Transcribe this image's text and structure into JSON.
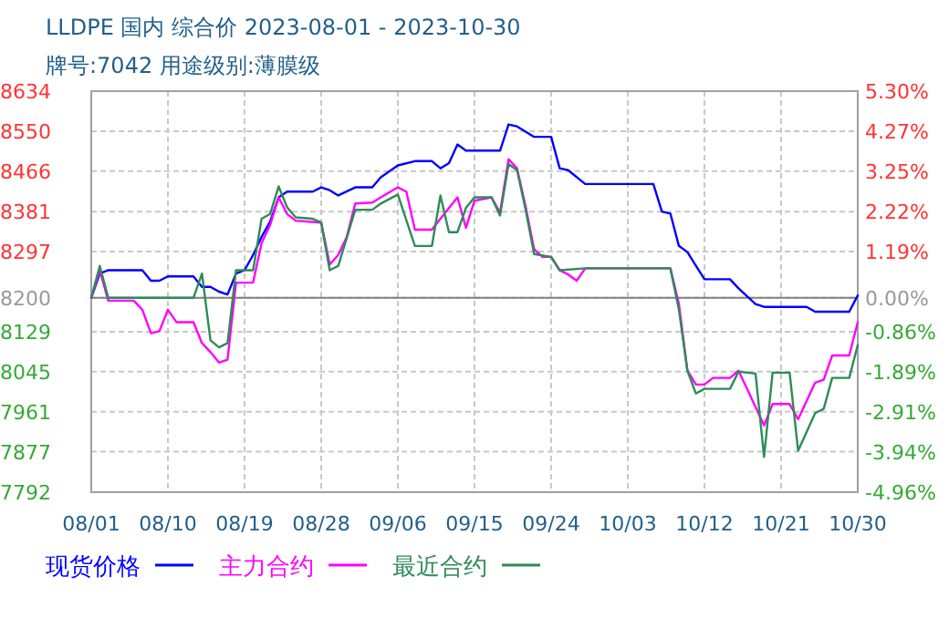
{
  "chart_data": {
    "type": "line",
    "title": "LLDPE 国内 综合价 2023-08-01 - 2023-10-30",
    "subtitle": "牌号:7042 用途级别:薄膜级",
    "xlim": [
      "2023-08-01",
      "2023-10-30"
    ],
    "xticks": [
      {
        "value": "2023-08-01",
        "label": "08/01"
      },
      {
        "value": "2023-08-10",
        "label": "08/10"
      },
      {
        "value": "2023-08-19",
        "label": "08/19"
      },
      {
        "value": "2023-08-28",
        "label": "08/28"
      },
      {
        "value": "2023-09-06",
        "label": "09/06"
      },
      {
        "value": "2023-09-15",
        "label": "09/15"
      },
      {
        "value": "2023-09-24",
        "label": "09/24"
      },
      {
        "value": "2023-10-03",
        "label": "10/03"
      },
      {
        "value": "2023-10-12",
        "label": "10/12"
      },
      {
        "value": "2023-10-21",
        "label": "10/21"
      },
      {
        "value": "2023-10-30",
        "label": "10/30"
      }
    ],
    "ylim": [
      7792,
      8634
    ],
    "yticks": [
      7792,
      7877,
      7961,
      8045,
      8129,
      8200,
      8297,
      8381,
      8466,
      8550,
      8634
    ],
    "y2lim": [
      -4.96,
      5.3
    ],
    "y2ticks": [
      {
        "value": -4.96,
        "label": "-4.96%"
      },
      {
        "value": -3.94,
        "label": "-3.94%"
      },
      {
        "value": -2.91,
        "label": "-2.91%"
      },
      {
        "value": -1.89,
        "label": "-1.89%"
      },
      {
        "value": -0.86,
        "label": "-0.86%"
      },
      {
        "value": 0,
        "label": "0.00%"
      },
      {
        "value": 1.19,
        "label": "1.19%"
      },
      {
        "value": 2.22,
        "label": "2.22%"
      },
      {
        "value": 3.25,
        "label": "3.25%"
      },
      {
        "value": 4.27,
        "label": "4.27%"
      },
      {
        "value": 5.3,
        "label": "5.30%"
      }
    ],
    "ref_lines": [
      {
        "axis": "y",
        "value": 8200,
        "color": "#808080"
      }
    ],
    "grid": true,
    "legend": "bottom",
    "marker": "none",
    "line_style": "solid",
    "series": [
      {
        "name": "现货价格",
        "color": "#0000ff",
        "x": [
          "2023-08-01",
          "2023-08-02",
          "2023-08-03",
          "2023-08-07",
          "2023-08-08",
          "2023-08-09",
          "2023-08-10",
          "2023-08-13",
          "2023-08-14",
          "2023-08-15",
          "2023-08-16",
          "2023-08-17",
          "2023-08-18",
          "2023-08-19",
          "2023-08-20",
          "2023-08-21",
          "2023-08-22",
          "2023-08-23",
          "2023-08-24",
          "2023-08-27",
          "2023-08-28",
          "2023-08-29",
          "2023-08-30",
          "2023-09-01",
          "2023-09-03",
          "2023-09-04",
          "2023-09-06",
          "2023-09-08",
          "2023-09-10",
          "2023-09-11",
          "2023-09-12",
          "2023-09-13",
          "2023-09-14",
          "2023-09-18",
          "2023-09-19",
          "2023-09-20",
          "2023-09-22",
          "2023-09-24",
          "2023-09-25",
          "2023-09-26",
          "2023-09-28",
          "2023-10-06",
          "2023-10-07",
          "2023-10-08",
          "2023-10-09",
          "2023-10-10",
          "2023-10-12",
          "2023-10-15",
          "2023-10-16",
          "2023-10-18",
          "2023-10-19",
          "2023-10-24",
          "2023-10-25",
          "2023-10-29",
          "2023-10-30"
        ],
        "values": [
          8200,
          8251,
          8258,
          8258,
          8236,
          8236,
          8245,
          8245,
          8223,
          8223,
          8213,
          8207,
          8251,
          8258,
          8290,
          8328,
          8360,
          8411,
          8423,
          8423,
          8432,
          8426,
          8415,
          8432,
          8432,
          8453,
          8478,
          8487,
          8487,
          8472,
          8483,
          8522,
          8509,
          8509,
          8564,
          8560,
          8538,
          8538,
          8472,
          8468,
          8439,
          8439,
          8381,
          8377,
          8309,
          8296,
          8239,
          8239,
          8220,
          8187,
          8181,
          8181,
          8171,
          8171,
          8205
        ]
      },
      {
        "name": "主力合约",
        "color": "#ff00ff",
        "x": [
          "2023-08-01",
          "2023-08-02",
          "2023-08-03",
          "2023-08-06",
          "2023-08-07",
          "2023-08-08",
          "2023-08-09",
          "2023-08-10",
          "2023-08-11",
          "2023-08-13",
          "2023-08-14",
          "2023-08-15",
          "2023-08-16",
          "2023-08-17",
          "2023-08-18",
          "2023-08-20",
          "2023-08-21",
          "2023-08-22",
          "2023-08-23",
          "2023-08-24",
          "2023-08-25",
          "2023-08-28",
          "2023-08-29",
          "2023-08-30",
          "2023-08-31",
          "2023-09-01",
          "2023-09-03",
          "2023-09-04",
          "2023-09-06",
          "2023-09-07",
          "2023-09-08",
          "2023-09-10",
          "2023-09-11",
          "2023-09-13",
          "2023-09-14",
          "2023-09-15",
          "2023-09-17",
          "2023-09-18",
          "2023-09-19",
          "2023-09-20",
          "2023-09-21",
          "2023-09-22",
          "2023-09-23",
          "2023-09-24",
          "2023-09-25",
          "2023-09-26",
          "2023-09-27",
          "2023-09-28",
          "2023-10-08",
          "2023-10-09",
          "2023-10-10",
          "2023-10-11",
          "2023-10-12",
          "2023-10-13",
          "2023-10-15",
          "2023-10-16",
          "2023-10-17",
          "2023-10-19",
          "2023-10-20",
          "2023-10-22",
          "2023-10-23",
          "2023-10-25",
          "2023-10-26",
          "2023-10-27",
          "2023-10-29",
          "2023-10-30"
        ],
        "values": [
          8200,
          8258,
          8194,
          8194,
          8175,
          8126,
          8130,
          8175,
          8149,
          8149,
          8105,
          8086,
          8064,
          8070,
          8232,
          8232,
          8315,
          8353,
          8411,
          8376,
          8362,
          8358,
          8270,
          8290,
          8328,
          8398,
          8400,
          8411,
          8432,
          8423,
          8343,
          8343,
          8366,
          8411,
          8347,
          8404,
          8411,
          8379,
          8491,
          8472,
          8392,
          8302,
          8286,
          8286,
          8258,
          8249,
          8236,
          8262,
          8262,
          8187,
          8047,
          8018,
          8018,
          8032,
          8032,
          8047,
          8009,
          7932,
          7977,
          7977,
          7945,
          8022,
          8028,
          8079,
          8079,
          8149
        ]
      },
      {
        "name": "最近合约",
        "color": "#2e8b57",
        "x": [
          "2023-08-01",
          "2023-08-02",
          "2023-08-03",
          "2023-08-13",
          "2023-08-14",
          "2023-08-15",
          "2023-08-16",
          "2023-08-17",
          "2023-08-18",
          "2023-08-20",
          "2023-08-21",
          "2023-08-22",
          "2023-08-23",
          "2023-08-24",
          "2023-08-25",
          "2023-08-27",
          "2023-08-28",
          "2023-08-29",
          "2023-08-30",
          "2023-09-01",
          "2023-09-03",
          "2023-09-04",
          "2023-09-06",
          "2023-09-08",
          "2023-09-10",
          "2023-09-11",
          "2023-09-12",
          "2023-09-13",
          "2023-09-14",
          "2023-09-15",
          "2023-09-17",
          "2023-09-18",
          "2023-09-19",
          "2023-09-20",
          "2023-09-21",
          "2023-09-22",
          "2023-09-24",
          "2023-09-25",
          "2023-09-28",
          "2023-10-08",
          "2023-10-09",
          "2023-10-10",
          "2023-10-11",
          "2023-10-12",
          "2023-10-15",
          "2023-10-16",
          "2023-10-18",
          "2023-10-19",
          "2023-10-20",
          "2023-10-22",
          "2023-10-23",
          "2023-10-25",
          "2023-10-26",
          "2023-10-27",
          "2023-10-29",
          "2023-10-30"
        ],
        "values": [
          8200,
          8267,
          8200,
          8200,
          8251,
          8111,
          8096,
          8105,
          8258,
          8258,
          8366,
          8376,
          8434,
          8390,
          8369,
          8366,
          8358,
          8258,
          8267,
          8385,
          8385,
          8398,
          8417,
          8309,
          8309,
          8415,
          8338,
          8338,
          8389,
          8411,
          8411,
          8373,
          8481,
          8468,
          8385,
          8292,
          8286,
          8258,
          8262,
          8262,
          8175,
          8047,
          7999,
          8009,
          8009,
          8045,
          8041,
          7866,
          8043,
          8043,
          7879,
          7958,
          7967,
          8032,
          8032,
          8101
        ]
      }
    ]
  }
}
